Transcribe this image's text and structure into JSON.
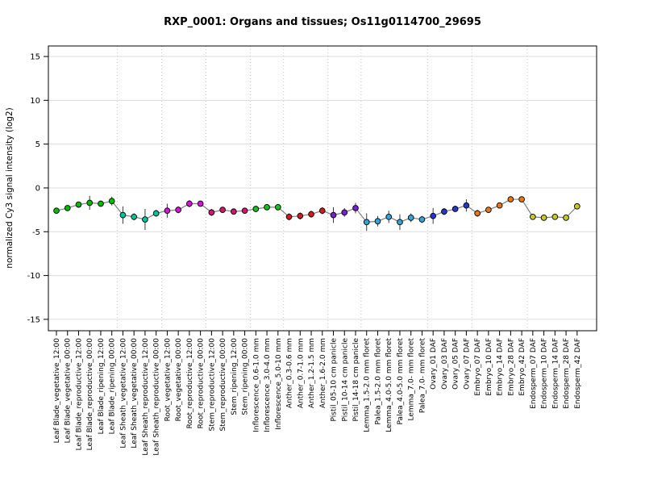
{
  "chart_data": {
    "type": "line",
    "title": "RXP_0001: Organs and tissues; Os11g0114700_29695",
    "xlabel": "",
    "ylabel": "normalized Cy3 signal intensity (log2)",
    "ylim": [
      -16.3,
      16.2
    ],
    "yticks": [
      15,
      10,
      5,
      0,
      -5,
      -10,
      -15
    ],
    "grid": {
      "horizontal": "solid",
      "vertical": "dotted-at-group-boundaries"
    },
    "legend": "none",
    "line_color": "#7f7f7f",
    "error_bar_color": "#3c3c3c",
    "marker_outline_color": "#000000",
    "h_grid_color": "#dcdcdc",
    "v_grid_color": "#c8c8c8",
    "axis_color": "#000000",
    "categories": [
      "Leaf Blade_vegetative_12:00",
      "Leaf Blade_vegetative_00:00",
      "Leaf Blade_reproductive_12:00",
      "Leaf Blade_reproductive_00:00",
      "Leaf Blade_ripening_12:00",
      "Leaf Blade_ripening_00:00",
      "Leaf Sheath_vegetative_12:00",
      "Leaf Sheath_vegetative_00:00",
      "Leaf Sheath_reproductive_12:00",
      "Leaf Sheath_reproductive_00:00",
      "Root_vegetative_12:00",
      "Root_vegetative_00:00",
      "Root_reproductive_12:00",
      "Root_reproductive_00:00",
      "Stem_reproductive_12:00",
      "Stem_reproductive_00:00",
      "Stem_ripening_12:00",
      "Stem_ripening_00:00",
      "Inflorescence_0.6-1.0 mm",
      "Inflorescence_3.0-4.0 mm",
      "Inflorescence_5.0-10 mm",
      "Anther_0.3-0.6 mm",
      "Anther_0.7-1.0 mm",
      "Anther_1.2-1.5 mm",
      "Anther_1.6-2.0 mm",
      "Pistil_05-10 cm panicle",
      "Pistil_10-14 cm panicle",
      "Pistil_14-18 cm panicle",
      "Lemma_1.5-2.0 mm floret",
      "Palea_1.5-2.0 mm floret",
      "Lemma_4.0-5.0 mm floret",
      "Palea_4.0-5.0 mm floret",
      "Lemma_7.0- mm floret",
      "Palea_7.0- mm floret",
      "Ovary_01 DAF",
      "Ovary_03 DAF",
      "Ovary_05 DAF",
      "Ovary_07 DAF",
      "Embryo_07 DAF",
      "Embryo_10 DAF",
      "Embryo_14 DAF",
      "Embryo_28 DAF",
      "Embryo_42 DAF",
      "Endosperm_07 DAF",
      "Endosperm_10 DAF",
      "Endosperm_14 DAF",
      "Endosperm_28 DAF",
      "Endosperm_42 DAF"
    ],
    "values": [
      -2.6,
      -2.3,
      -1.9,
      -1.7,
      -1.8,
      -1.5,
      -3.1,
      -3.3,
      -3.6,
      -2.9,
      -2.6,
      -2.5,
      -1.8,
      -1.8,
      -2.8,
      -2.5,
      -2.7,
      -2.6,
      -2.4,
      -2.2,
      -2.2,
      -3.3,
      -3.2,
      -3.0,
      -2.6,
      -3.1,
      -2.8,
      -2.3,
      -3.9,
      -3.8,
      -3.3,
      -3.9,
      -3.4,
      -3.6,
      -3.2,
      -2.7,
      -2.4,
      -2.0,
      -2.9,
      -2.5,
      -2.0,
      -1.3,
      -1.3,
      -3.3,
      -3.4,
      -3.3,
      -3.4,
      -2.1
    ],
    "errors": [
      0.3,
      0.3,
      0.3,
      0.8,
      0.3,
      0.5,
      1.0,
      0.4,
      1.2,
      0.4,
      0.8,
      0.4,
      0.4,
      0.3,
      0.4,
      0.3,
      0.3,
      0.3,
      0.3,
      0.3,
      0.3,
      0.4,
      0.4,
      0.4,
      0.4,
      0.9,
      0.5,
      0.6,
      1.0,
      0.6,
      0.7,
      0.9,
      0.5,
      0.4,
      0.9,
      0.4,
      0.3,
      0.7,
      0.4,
      0.3,
      0.3,
      0.3,
      0.3,
      0.3,
      0.3,
      0.3,
      0.3,
      0.3
    ],
    "groups": [
      {
        "name": "Leaf Blade",
        "count": 6,
        "color": "#00be00"
      },
      {
        "name": "Leaf Sheath",
        "count": 4,
        "color": "#00c79b"
      },
      {
        "name": "Root",
        "count": 4,
        "color": "#d613d6"
      },
      {
        "name": "Stem",
        "count": 4,
        "color": "#d6136f"
      },
      {
        "name": "Inflorescence",
        "count": 3,
        "color": "#17c217"
      },
      {
        "name": "Anther",
        "count": 4,
        "color": "#d61a1a"
      },
      {
        "name": "Pistil",
        "count": 3,
        "color": "#7b1fd6"
      },
      {
        "name": "Lemma/Palea",
        "count": 6,
        "color": "#2fa7dc"
      },
      {
        "name": "Ovary",
        "count": 4,
        "color": "#2337cf"
      },
      {
        "name": "Embryo",
        "count": 5,
        "color": "#ec7712"
      },
      {
        "name": "Endosperm",
        "count": 5,
        "color": "#c9c91b"
      }
    ]
  }
}
